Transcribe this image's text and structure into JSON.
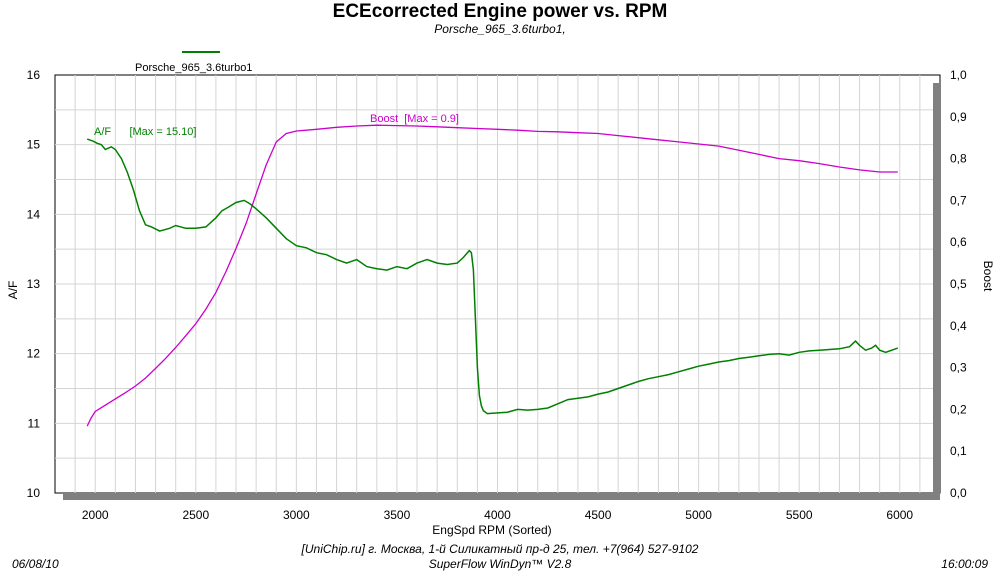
{
  "header": {
    "title": "ECEcorrected Engine power vs. RPM",
    "subtitle": "Porsche_965_3.6turbo1,"
  },
  "legend": {
    "label": "Porsche_965_3.6turbo1",
    "color": "#008000"
  },
  "footer": {
    "date": "06/08/10",
    "time": "16:00:09",
    "line1": "[UniChip.ru] г. Москва, 1-й Силикатный пр-д 25, тел. +7(964) 527-9102",
    "line2": "SuperFlow WinDyn™ V2.8"
  },
  "colors": {
    "af_line": "#008000",
    "boost_line": "#cc00cc",
    "grid": "#d4d4d4",
    "axis_bar": "#808080"
  },
  "chart_data": {
    "type": "line",
    "title": "ECEcorrected Engine power vs. RPM",
    "xlabel": "EngSpd  RPM   (Sorted)",
    "ylabel": "A/F",
    "y2label": "Boost",
    "xlim": [
      1800,
      6200
    ],
    "ylim": [
      10,
      16
    ],
    "y2lim": [
      0,
      1
    ],
    "xticks": [
      "2000",
      "2500",
      "3000",
      "3500",
      "4000",
      "4500",
      "5000",
      "5500",
      "6000"
    ],
    "yticks": [
      "10",
      "11",
      "12",
      "13",
      "14",
      "15",
      "16"
    ],
    "y2ticks": [
      "0,0",
      "0,1",
      "0,2",
      "0,3",
      "0,4",
      "0,5",
      "0,6",
      "0,7",
      "0,8",
      "0,9",
      "1,0"
    ],
    "grid": true,
    "legend_position": "top-left",
    "annotations": [
      {
        "text": "A/F      [Max = 15.10]",
        "series": "A/F"
      },
      {
        "text": "Boost  [Max = 0.9]",
        "series": "Boost"
      }
    ],
    "series": [
      {
        "name": "A/F",
        "axis": "left",
        "x": [
          1960,
          1990,
          2010,
          2030,
          2050,
          2080,
          2100,
          2130,
          2160,
          2190,
          2220,
          2250,
          2280,
          2320,
          2370,
          2400,
          2450,
          2500,
          2550,
          2600,
          2630,
          2660,
          2700,
          2740,
          2770,
          2800,
          2850,
          2900,
          2950,
          3000,
          3050,
          3100,
          3150,
          3200,
          3250,
          3300,
          3350,
          3400,
          3450,
          3500,
          3550,
          3600,
          3650,
          3700,
          3750,
          3800,
          3830,
          3860,
          3870,
          3880,
          3890,
          3900,
          3910,
          3920,
          3930,
          3950,
          4000,
          4050,
          4100,
          4150,
          4200,
          4250,
          4300,
          4350,
          4400,
          4450,
          4500,
          4550,
          4600,
          4650,
          4700,
          4750,
          4800,
          4850,
          4900,
          4950,
          5000,
          5050,
          5100,
          5150,
          5200,
          5250,
          5300,
          5350,
          5400,
          5450,
          5500,
          5550,
          5600,
          5650,
          5700,
          5750,
          5780,
          5800,
          5830,
          5860,
          5880,
          5900,
          5930,
          5960,
          5990
        ],
        "values": [
          15.08,
          15.05,
          15.02,
          15.0,
          14.93,
          14.97,
          14.93,
          14.8,
          14.6,
          14.35,
          14.05,
          13.85,
          13.82,
          13.76,
          13.8,
          13.84,
          13.8,
          13.8,
          13.82,
          13.95,
          14.05,
          14.1,
          14.17,
          14.2,
          14.15,
          14.08,
          13.95,
          13.8,
          13.65,
          13.55,
          13.52,
          13.45,
          13.42,
          13.35,
          13.3,
          13.35,
          13.25,
          13.22,
          13.2,
          13.25,
          13.22,
          13.3,
          13.35,
          13.3,
          13.28,
          13.3,
          13.38,
          13.48,
          13.45,
          13.2,
          12.5,
          11.8,
          11.4,
          11.25,
          11.18,
          11.14,
          11.15,
          11.16,
          11.2,
          11.19,
          11.2,
          11.22,
          11.28,
          11.34,
          11.36,
          11.38,
          11.42,
          11.45,
          11.5,
          11.55,
          11.6,
          11.64,
          11.67,
          11.7,
          11.74,
          11.78,
          11.82,
          11.85,
          11.88,
          11.9,
          11.93,
          11.95,
          11.97,
          11.99,
          12.0,
          11.98,
          12.02,
          12.04,
          12.05,
          12.06,
          12.07,
          12.1,
          12.18,
          12.12,
          12.05,
          12.08,
          12.12,
          12.05,
          12.02,
          12.05,
          12.08
        ]
      },
      {
        "name": "Boost",
        "axis": "right",
        "x": [
          1960,
          1980,
          2000,
          2050,
          2100,
          2150,
          2200,
          2250,
          2300,
          2350,
          2400,
          2450,
          2500,
          2550,
          2600,
          2650,
          2700,
          2750,
          2800,
          2850,
          2900,
          2950,
          3000,
          3100,
          3200,
          3300,
          3400,
          3500,
          3600,
          3700,
          3800,
          3900,
          4000,
          4100,
          4200,
          4300,
          4400,
          4500,
          4600,
          4700,
          4800,
          4900,
          5000,
          5100,
          5200,
          5300,
          5400,
          5500,
          5600,
          5700,
          5800,
          5900,
          5990
        ],
        "values": [
          0.16,
          0.18,
          0.195,
          0.21,
          0.225,
          0.24,
          0.256,
          0.275,
          0.298,
          0.322,
          0.348,
          0.376,
          0.405,
          0.44,
          0.48,
          0.53,
          0.585,
          0.645,
          0.715,
          0.785,
          0.84,
          0.86,
          0.866,
          0.87,
          0.875,
          0.878,
          0.88,
          0.879,
          0.878,
          0.876,
          0.874,
          0.872,
          0.87,
          0.868,
          0.865,
          0.864,
          0.862,
          0.86,
          0.855,
          0.85,
          0.845,
          0.84,
          0.835,
          0.83,
          0.82,
          0.81,
          0.8,
          0.795,
          0.788,
          0.78,
          0.773,
          0.768,
          0.768
        ]
      }
    ]
  }
}
